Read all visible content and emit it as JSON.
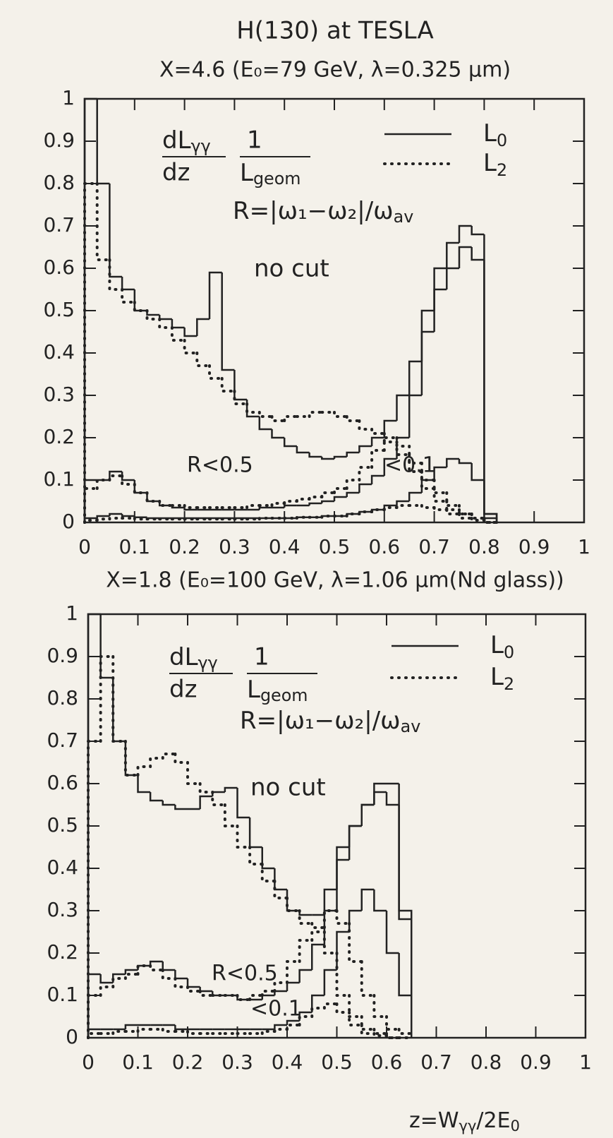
{
  "chart_data": [
    {
      "type": "histogram",
      "title": "H(130) at TESLA",
      "subtitle": "X=4.6 (E₀=79 GeV, λ=0.325 μm)",
      "formula": [
        "dL",
        "γγ",
        "dz",
        "1",
        "L",
        "geom"
      ],
      "rdef": [
        "R=|ω₁−ω₂|/ω",
        "av"
      ],
      "annotations": [
        "no cut",
        "R<0.5",
        "<0.1"
      ],
      "xlim": [
        0,
        1
      ],
      "ylim": [
        0,
        1
      ],
      "xticks": [
        0,
        0.1,
        0.2,
        0.3,
        0.4,
        0.5,
        0.6,
        0.7,
        0.8,
        0.9,
        1
      ],
      "yticks": [
        0,
        0.1,
        0.2,
        0.3,
        0.4,
        0.5,
        0.6,
        0.7,
        0.8,
        0.9,
        1
      ],
      "bins": [
        0,
        0.025,
        0.05,
        0.075,
        0.1,
        0.125,
        0.15,
        0.175,
        0.2,
        0.225,
        0.25,
        0.275,
        0.3,
        0.325,
        0.35,
        0.375,
        0.4,
        0.425,
        0.45,
        0.475,
        0.5,
        0.525,
        0.55,
        0.575,
        0.6,
        0.625,
        0.65,
        0.675,
        0.7,
        0.725,
        0.75,
        0.775,
        0.8,
        0.825
      ],
      "series": [
        {
          "name": "L",
          "subscript": "0",
          "dash": "solid",
          "color": "#222",
          "values": [
            [
              1.0,
              0.8,
              0.58,
              0.55,
              0.5,
              0.49,
              0.48,
              0.46,
              0.44,
              0.48,
              0.59,
              0.36,
              0.29,
              0.25,
              0.22,
              0.2,
              0.18,
              0.165,
              0.155,
              0.15,
              0.155,
              0.165,
              0.18,
              0.2,
              0.24,
              0.3,
              0.38,
              0.5,
              0.6,
              0.66,
              0.7,
              0.68,
              0.02
            ],
            [
              0.1,
              0.1,
              0.12,
              0.1,
              0.07,
              0.05,
              0.04,
              0.035,
              0.03,
              0.03,
              0.03,
              0.03,
              0.03,
              0.03,
              0.035,
              0.035,
              0.04,
              0.04,
              0.045,
              0.05,
              0.06,
              0.07,
              0.09,
              0.11,
              0.15,
              0.2,
              0.3,
              0.45,
              0.55,
              0.6,
              0.65,
              0.62,
              0.02
            ],
            [
              0.01,
              0.015,
              0.02,
              0.015,
              0.012,
              0.01,
              0.01,
              0.01,
              0.01,
              0.01,
              0.01,
              0.01,
              0.01,
              0.01,
              0.01,
              0.01,
              0.01,
              0.012,
              0.012,
              0.015,
              0.015,
              0.02,
              0.025,
              0.03,
              0.04,
              0.05,
              0.07,
              0.1,
              0.13,
              0.15,
              0.14,
              0.1,
              0.01
            ]
          ]
        },
        {
          "name": "L",
          "subscript": "2",
          "dash": "dotted",
          "color": "#222",
          "values": [
            [
              0.8,
              0.62,
              0.55,
              0.52,
              0.5,
              0.48,
              0.46,
              0.43,
              0.4,
              0.37,
              0.34,
              0.31,
              0.28,
              0.26,
              0.25,
              0.24,
              0.25,
              0.25,
              0.26,
              0.26,
              0.25,
              0.24,
              0.22,
              0.21,
              0.19,
              0.16,
              0.12,
              0.08,
              0.05,
              0.03,
              0.02,
              0.01,
              0
            ],
            [
              0.08,
              0.1,
              0.11,
              0.09,
              0.07,
              0.05,
              0.04,
              0.04,
              0.035,
              0.035,
              0.035,
              0.035,
              0.035,
              0.04,
              0.04,
              0.045,
              0.05,
              0.055,
              0.06,
              0.07,
              0.08,
              0.1,
              0.13,
              0.17,
              0.2,
              0.18,
              0.14,
              0.1,
              0.07,
              0.04,
              0.02,
              0.01,
              0
            ],
            [
              0.005,
              0.008,
              0.01,
              0.01,
              0.008,
              0.008,
              0.008,
              0.008,
              0.008,
              0.008,
              0.008,
              0.008,
              0.008,
              0.008,
              0.01,
              0.01,
              0.01,
              0.012,
              0.012,
              0.015,
              0.015,
              0.02,
              0.025,
              0.03,
              0.035,
              0.04,
              0.04,
              0.035,
              0.03,
              0.02,
              0.01,
              0.005,
              0
            ]
          ]
        }
      ]
    },
    {
      "type": "histogram",
      "subtitle": "X=1.8 (E₀=100 GeV, λ=1.06 μm(Nd glass))",
      "formula": [
        "dL",
        "γγ",
        "dz",
        "1",
        "L",
        "geom"
      ],
      "rdef": [
        "R=|ω₁−ω₂|/ω",
        "av"
      ],
      "annotations": [
        "no cut",
        "R<0.5",
        "<0.1"
      ],
      "xlabel": [
        "z=W",
        "γγ",
        "/2E",
        "0"
      ],
      "xlim": [
        0,
        1
      ],
      "ylim": [
        0,
        1
      ],
      "xticks": [
        0,
        0.1,
        0.2,
        0.3,
        0.4,
        0.5,
        0.6,
        0.7,
        0.8,
        0.9,
        1
      ],
      "yticks": [
        0,
        0.1,
        0.2,
        0.3,
        0.4,
        0.5,
        0.6,
        0.7,
        0.8,
        0.9,
        1
      ],
      "bins": [
        0,
        0.025,
        0.05,
        0.075,
        0.1,
        0.125,
        0.15,
        0.175,
        0.2,
        0.225,
        0.25,
        0.275,
        0.3,
        0.325,
        0.35,
        0.375,
        0.4,
        0.425,
        0.45,
        0.475,
        0.5,
        0.525,
        0.55,
        0.575,
        0.6,
        0.625,
        0.65
      ],
      "series": [
        {
          "name": "L",
          "subscript": "0",
          "dash": "solid",
          "color": "#222",
          "values": [
            [
              1.0,
              0.85,
              0.7,
              0.62,
              0.58,
              0.56,
              0.55,
              0.54,
              0.54,
              0.57,
              0.58,
              0.59,
              0.52,
              0.45,
              0.4,
              0.35,
              0.3,
              0.29,
              0.29,
              0.35,
              0.45,
              0.5,
              0.55,
              0.6,
              0.6,
              0.3
            ],
            [
              0.15,
              0.13,
              0.15,
              0.16,
              0.17,
              0.18,
              0.16,
              0.14,
              0.12,
              0.11,
              0.1,
              0.1,
              0.09,
              0.09,
              0.1,
              0.11,
              0.13,
              0.16,
              0.22,
              0.3,
              0.42,
              0.5,
              0.55,
              0.58,
              0.55,
              0.28
            ],
            [
              0.02,
              0.02,
              0.02,
              0.03,
              0.03,
              0.03,
              0.03,
              0.02,
              0.02,
              0.02,
              0.02,
              0.02,
              0.02,
              0.02,
              0.02,
              0.03,
              0.04,
              0.06,
              0.1,
              0.16,
              0.25,
              0.3,
              0.35,
              0.3,
              0.2,
              0.1
            ]
          ]
        },
        {
          "name": "L",
          "subscript": "2",
          "dash": "dotted",
          "color": "#222",
          "values": [
            [
              0.7,
              0.9,
              0.7,
              0.62,
              0.64,
              0.66,
              0.67,
              0.65,
              0.6,
              0.58,
              0.55,
              0.5,
              0.45,
              0.41,
              0.37,
              0.33,
              0.3,
              0.27,
              0.26,
              0.3,
              0.27,
              0.18,
              0.1,
              0.05,
              0.02,
              0.01
            ],
            [
              0.1,
              0.12,
              0.14,
              0.15,
              0.17,
              0.16,
              0.14,
              0.12,
              0.11,
              0.1,
              0.1,
              0.1,
              0.09,
              0.1,
              0.11,
              0.13,
              0.18,
              0.23,
              0.25,
              0.2,
              0.1,
              0.05,
              0.02,
              0.01,
              0,
              0
            ],
            [
              0.01,
              0.01,
              0.015,
              0.015,
              0.02,
              0.02,
              0.015,
              0.015,
              0.01,
              0.01,
              0.01,
              0.01,
              0.01,
              0.01,
              0.015,
              0.02,
              0.03,
              0.05,
              0.07,
              0.08,
              0.06,
              0.03,
              0.01,
              0.005,
              0,
              0
            ]
          ]
        }
      ]
    }
  ]
}
